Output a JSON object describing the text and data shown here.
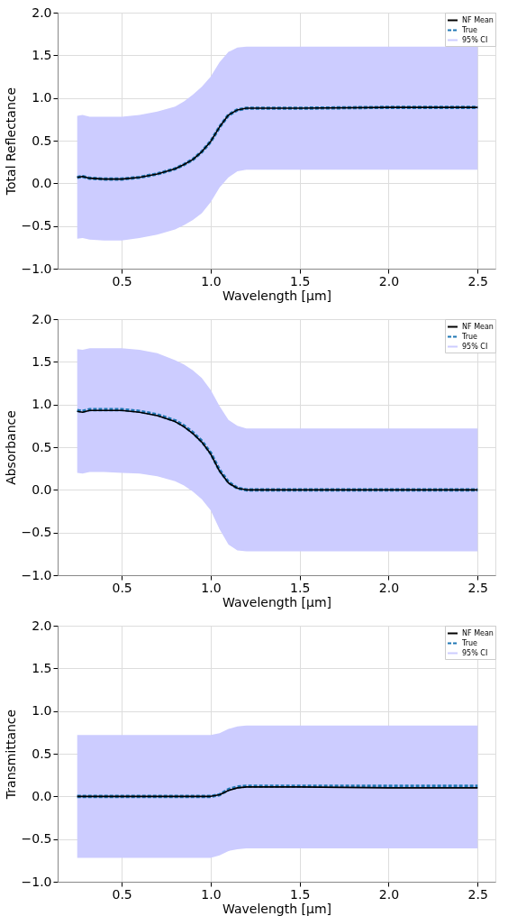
{
  "chart_data": [
    {
      "type": "line",
      "xlabel": "Wavelength [µm]",
      "ylabel": "Total Reflectance",
      "xlim": [
        0.14,
        2.6
      ],
      "ylim": [
        -1.0,
        2.0
      ],
      "xticks": [
        {
          "value": 0.5,
          "label": "0.5"
        },
        {
          "value": 1,
          "label": "1.0"
        },
        {
          "value": 1.5,
          "label": "1.5"
        },
        {
          "value": 2,
          "label": "2.0"
        },
        {
          "value": 2.5,
          "label": "2.5"
        }
      ],
      "yticks": [
        {
          "value": -1,
          "label": "−1.0"
        },
        {
          "value": -0.5,
          "label": "−0.5"
        },
        {
          "value": 0,
          "label": "0.0"
        },
        {
          "value": 0.5,
          "label": "0.5"
        },
        {
          "value": 1,
          "label": "1.0"
        },
        {
          "value": 1.5,
          "label": "1.5"
        },
        {
          "value": 2,
          "label": "2.0"
        }
      ],
      "grid": true,
      "legend": "top right",
      "annotations": [
        "95% CI"
      ],
      "x": [
        0.25,
        0.28,
        0.32,
        0.4,
        0.5,
        0.6,
        0.7,
        0.8,
        0.85,
        0.9,
        0.95,
        1.0,
        1.05,
        1.1,
        1.15,
        1.2,
        1.5,
        2.0,
        2.5
      ],
      "series": [
        {
          "name": "NF Mean",
          "color": "#000000",
          "line_style": "solid",
          "values": [
            0.07,
            0.08,
            0.06,
            0.05,
            0.05,
            0.07,
            0.11,
            0.17,
            0.22,
            0.28,
            0.37,
            0.49,
            0.66,
            0.8,
            0.86,
            0.88,
            0.88,
            0.89,
            0.89
          ],
          "lower": [
            -0.65,
            -0.64,
            -0.66,
            -0.67,
            -0.67,
            -0.64,
            -0.6,
            -0.54,
            -0.49,
            -0.43,
            -0.35,
            -0.22,
            -0.05,
            0.07,
            0.14,
            0.16,
            0.16,
            0.16,
            0.16
          ],
          "upper": [
            0.79,
            0.8,
            0.78,
            0.78,
            0.78,
            0.8,
            0.84,
            0.9,
            0.96,
            1.04,
            1.13,
            1.25,
            1.42,
            1.54,
            1.59,
            1.6,
            1.6,
            1.6,
            1.6
          ]
        },
        {
          "name": "True",
          "color": "#1f77b4",
          "line_style": "dashed",
          "values": [
            0.07,
            0.08,
            0.06,
            0.05,
            0.05,
            0.07,
            0.11,
            0.17,
            0.22,
            0.28,
            0.37,
            0.49,
            0.66,
            0.8,
            0.86,
            0.88,
            0.88,
            0.89,
            0.89
          ]
        }
      ]
    },
    {
      "type": "line",
      "xlabel": "Wavelength [µm]",
      "ylabel": "Absorbance",
      "xlim": [
        0.14,
        2.6
      ],
      "ylim": [
        -1.0,
        2.0
      ],
      "xticks": [
        {
          "value": 0.5,
          "label": "0.5"
        },
        {
          "value": 1,
          "label": "1.0"
        },
        {
          "value": 1.5,
          "label": "1.5"
        },
        {
          "value": 2,
          "label": "2.0"
        },
        {
          "value": 2.5,
          "label": "2.5"
        }
      ],
      "yticks": [
        {
          "value": -1,
          "label": "−1.0"
        },
        {
          "value": -0.5,
          "label": "−0.5"
        },
        {
          "value": 0,
          "label": "0.0"
        },
        {
          "value": 0.5,
          "label": "0.5"
        },
        {
          "value": 1,
          "label": "1.0"
        },
        {
          "value": 1.5,
          "label": "1.5"
        },
        {
          "value": 2,
          "label": "2.0"
        }
      ],
      "grid": true,
      "legend": "top right",
      "annotations": [
        "95% CI"
      ],
      "x": [
        0.25,
        0.28,
        0.32,
        0.4,
        0.5,
        0.6,
        0.7,
        0.8,
        0.85,
        0.9,
        0.95,
        1.0,
        1.05,
        1.1,
        1.15,
        1.2,
        1.5,
        2.0,
        2.5
      ],
      "series": [
        {
          "name": "NF Mean",
          "color": "#000000",
          "line_style": "solid",
          "values": [
            0.92,
            0.91,
            0.93,
            0.93,
            0.93,
            0.91,
            0.87,
            0.8,
            0.74,
            0.66,
            0.56,
            0.42,
            0.22,
            0.08,
            0.02,
            0.0,
            0.0,
            0.0,
            0.0
          ],
          "lower": [
            0.2,
            0.19,
            0.21,
            0.21,
            0.2,
            0.19,
            0.16,
            0.1,
            0.05,
            -0.02,
            -0.11,
            -0.24,
            -0.46,
            -0.64,
            -0.71,
            -0.72,
            -0.72,
            -0.72,
            -0.72
          ],
          "upper": [
            1.65,
            1.64,
            1.66,
            1.66,
            1.66,
            1.64,
            1.6,
            1.52,
            1.47,
            1.4,
            1.31,
            1.17,
            0.98,
            0.82,
            0.75,
            0.72,
            0.72,
            0.72,
            0.72
          ]
        },
        {
          "name": "True",
          "color": "#1f77b4",
          "line_style": "dashed",
          "values": [
            0.93,
            0.92,
            0.94,
            0.94,
            0.94,
            0.92,
            0.88,
            0.81,
            0.75,
            0.67,
            0.57,
            0.43,
            0.23,
            0.09,
            0.02,
            0.0,
            0.0,
            0.0,
            0.0
          ]
        }
      ]
    },
    {
      "type": "line",
      "xlabel": "Wavelength [µm]",
      "ylabel": "Transmittance",
      "xlim": [
        0.14,
        2.6
      ],
      "ylim": [
        -1.0,
        2.0
      ],
      "xticks": [
        {
          "value": 0.5,
          "label": "0.5"
        },
        {
          "value": 1,
          "label": "1.0"
        },
        {
          "value": 1.5,
          "label": "1.5"
        },
        {
          "value": 2,
          "label": "2.0"
        },
        {
          "value": 2.5,
          "label": "2.5"
        }
      ],
      "yticks": [
        {
          "value": -1,
          "label": "−1.0"
        },
        {
          "value": -0.5,
          "label": "−0.5"
        },
        {
          "value": 0,
          "label": "0.0"
        },
        {
          "value": 0.5,
          "label": "0.5"
        },
        {
          "value": 1,
          "label": "1.0"
        },
        {
          "value": 1.5,
          "label": "1.5"
        },
        {
          "value": 2,
          "label": "2.0"
        }
      ],
      "grid": true,
      "legend": "top right",
      "annotations": [
        "95% CI"
      ],
      "x": [
        0.25,
        0.28,
        0.32,
        0.4,
        0.5,
        0.6,
        0.7,
        0.8,
        0.85,
        0.9,
        0.95,
        1.0,
        1.05,
        1.1,
        1.15,
        1.2,
        1.5,
        2.0,
        2.5
      ],
      "series": [
        {
          "name": "NF Mean",
          "color": "#000000",
          "line_style": "solid",
          "values": [
            0.0,
            0.0,
            0.0,
            0.0,
            0.0,
            0.0,
            0.0,
            0.0,
            0.0,
            0.0,
            0.0,
            0.0,
            0.02,
            0.07,
            0.1,
            0.11,
            0.11,
            0.1,
            0.1
          ],
          "lower": [
            -0.72,
            -0.72,
            -0.72,
            -0.72,
            -0.72,
            -0.72,
            -0.72,
            -0.72,
            -0.72,
            -0.72,
            -0.72,
            -0.72,
            -0.69,
            -0.64,
            -0.62,
            -0.61,
            -0.61,
            -0.61,
            -0.61
          ],
          "upper": [
            0.72,
            0.72,
            0.72,
            0.72,
            0.72,
            0.72,
            0.72,
            0.72,
            0.72,
            0.72,
            0.72,
            0.72,
            0.74,
            0.79,
            0.82,
            0.83,
            0.83,
            0.83,
            0.83
          ]
        },
        {
          "name": "True",
          "color": "#1f77b4",
          "line_style": "dashed",
          "values": [
            0.0,
            0.0,
            0.0,
            0.0,
            0.0,
            0.0,
            0.0,
            0.0,
            0.0,
            0.0,
            0.0,
            0.0,
            0.02,
            0.08,
            0.11,
            0.12,
            0.12,
            0.12,
            0.12
          ]
        }
      ]
    }
  ]
}
